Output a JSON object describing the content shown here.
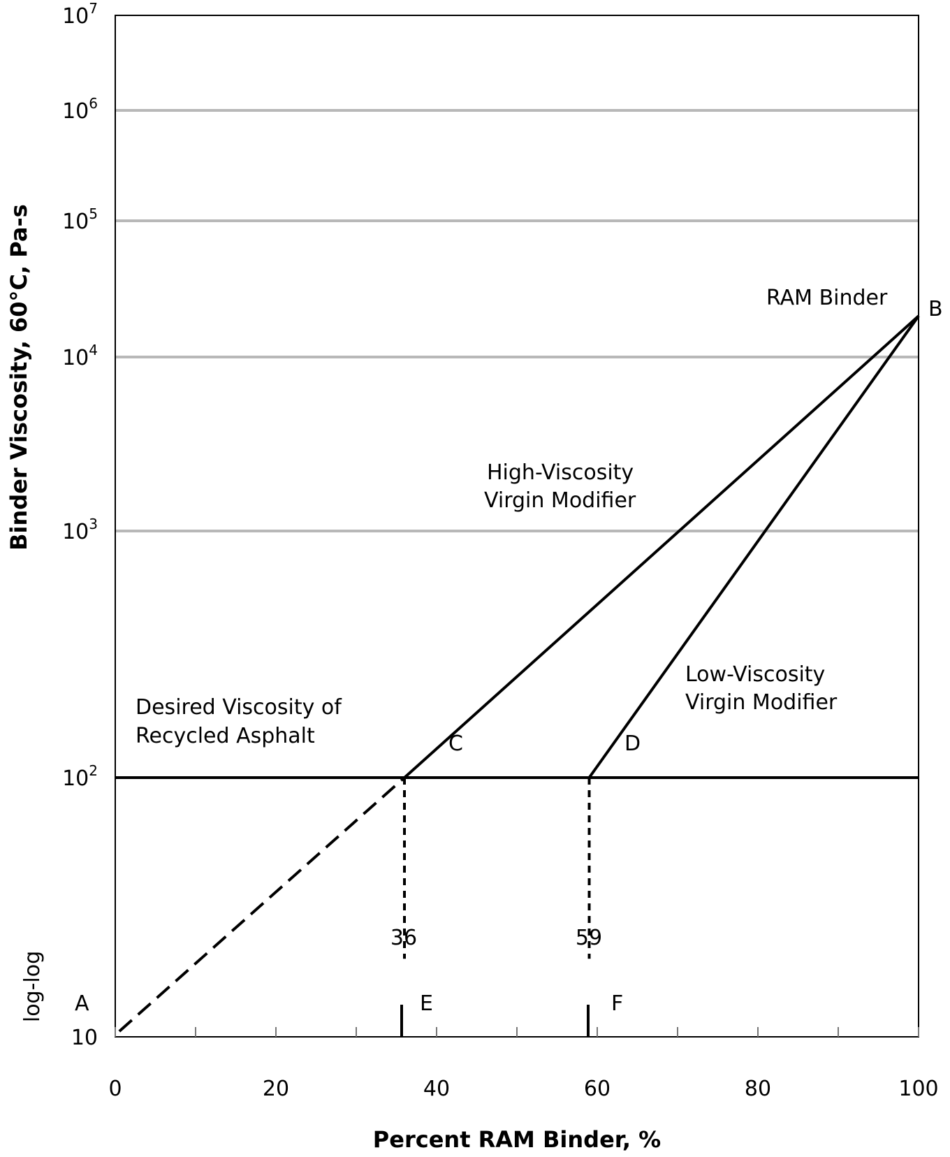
{
  "chart_data": {
    "type": "line",
    "xlabel": "Percent RAM Binder, %",
    "ylabel": "Binder Viscosity, 60°C, Pa-s",
    "xlim": [
      0,
      100
    ],
    "xticks": [
      "0",
      "20",
      "40",
      "60",
      "80",
      "100"
    ],
    "yscale_note": "log-log",
    "yticks": [
      {
        "base": "10",
        "exp": "7"
      },
      {
        "base": "10",
        "exp": "6"
      },
      {
        "base": "10",
        "exp": "5"
      },
      {
        "base": "10",
        "exp": "4"
      },
      {
        "base": "10",
        "exp": "3"
      },
      {
        "base": "10",
        "exp": "2"
      },
      {
        "base": "10",
        "exp": ""
      }
    ],
    "grid": true,
    "series": [
      {
        "name": "",
        "style": "solid",
        "x": [
          0,
          100
        ],
        "y": [
          100,
          100
        ]
      },
      {
        "name": "",
        "style": "solid",
        "x": [
          36,
          100
        ],
        "y": [
          100,
          20000
        ]
      },
      {
        "name": "",
        "style": "solid",
        "x": [
          59,
          100
        ],
        "y": [
          100,
          20000
        ]
      },
      {
        "name": "",
        "style": "dashed",
        "x": [
          0.5,
          36
        ],
        "y": [
          10.5,
          100
        ]
      },
      {
        "name": "",
        "style": "dashed",
        "x": [
          36,
          36
        ],
        "y": [
          100,
          20
        ]
      },
      {
        "name": "",
        "style": "dashed",
        "x": [
          59,
          59
        ],
        "y": [
          100,
          20
        ]
      }
    ],
    "annotations": {
      "ram_binder": "RAM Binder",
      "point_b": "B",
      "high_visc_line1": "High-Viscosity",
      "high_visc_line2": "Virgin Modifier",
      "low_visc_line1": "Low-Viscosity",
      "low_visc_line2": "Virgin Modifier",
      "desired_line1": "Desired Viscosity of",
      "desired_line2": "Recycled Asphalt",
      "point_c": "C",
      "point_d": "D",
      "value_36": "36",
      "value_59": "59",
      "point_a": "A",
      "point_e": "E",
      "point_f": "F"
    }
  }
}
